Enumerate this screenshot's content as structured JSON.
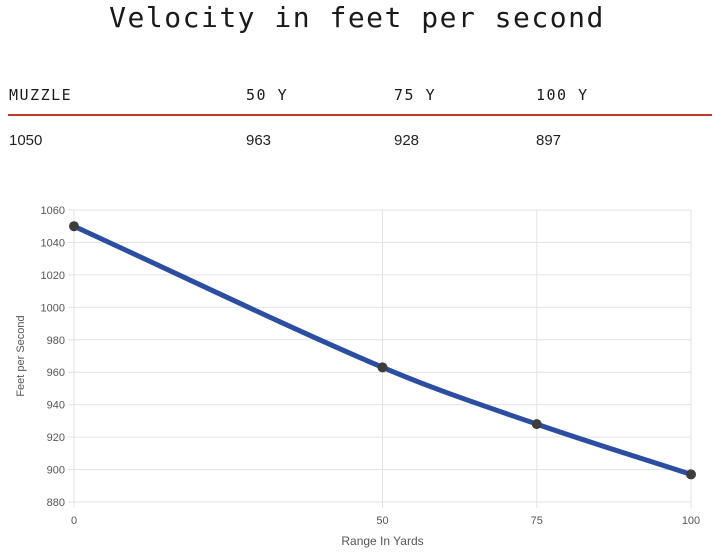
{
  "title": "Velocity in feet per second",
  "table": {
    "headers": [
      "MUZZLE",
      "50 Y",
      "75 Y",
      "100 Y"
    ],
    "values": [
      "1050",
      "963",
      "928",
      "897"
    ]
  },
  "colors": {
    "line": "#2c4ea0",
    "point": "#3d3d3d",
    "accent_rule": "#c0392b",
    "grid": "#e3e3e3"
  },
  "chart_data": {
    "type": "line",
    "x": [
      0,
      50,
      75,
      100
    ],
    "x_ticks": [
      "0",
      "50",
      "75",
      "100"
    ],
    "series": [
      {
        "values": [
          1050,
          963,
          928,
          897
        ]
      }
    ],
    "xlabel": "Range In Yards",
    "ylabel": "Feet per Second",
    "xlim": [
      0,
      100
    ],
    "ylim": [
      880,
      1060
    ],
    "y_ticks": [
      "880",
      "900",
      "920",
      "940",
      "960",
      "980",
      "1000",
      "1020",
      "1040",
      "1060"
    ],
    "grid": true,
    "legend": "none"
  }
}
